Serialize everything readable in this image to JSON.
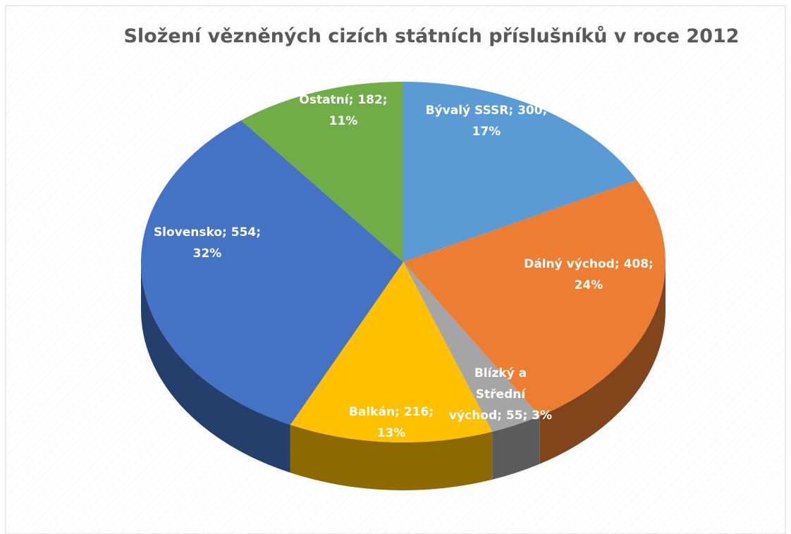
{
  "chart_data": {
    "type": "pie",
    "title": "Složení vězněných cizích státních příslušníků v roce 2012",
    "values": [
      300,
      408,
      55,
      216,
      554,
      182
    ],
    "data_labels": [
      "Bývalý SSSR; 300; 17%",
      "Dálný východ; 408; 24%",
      "Blízký a Střední východ; 55; 3%",
      "Balkán; 216; 13%",
      "Slovensko; 554; 32%",
      "Ostatní; 182; 11%"
    ],
    "colors": [
      "#5b9bd5",
      "#ed7d31",
      "#a5a5a5",
      "#ffc000",
      "#4472c4",
      "#70ad47"
    ]
  }
}
